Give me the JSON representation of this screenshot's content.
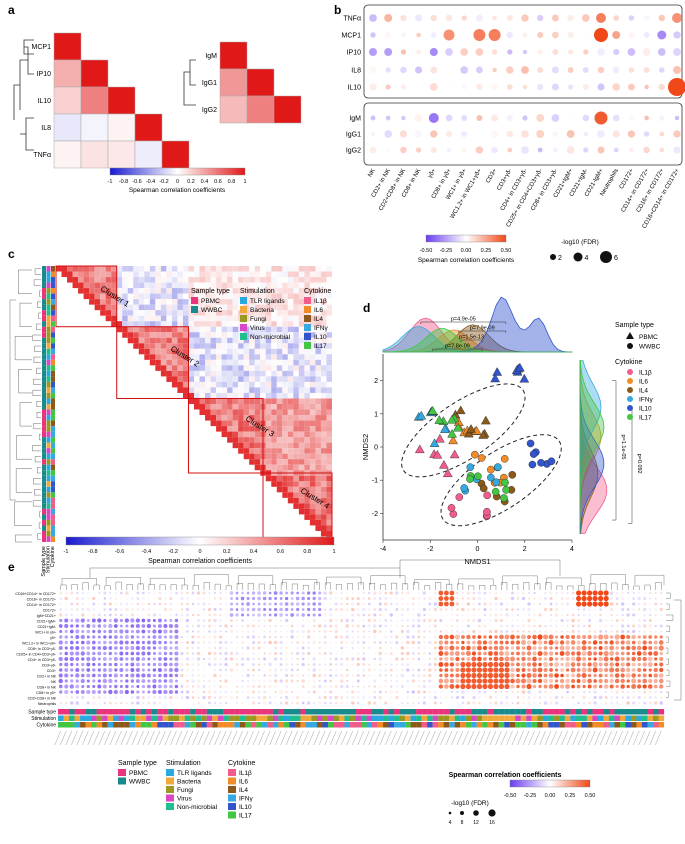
{
  "panels": {
    "a": {
      "label": "a",
      "left_matrix": {
        "rows": [
          "MCP1",
          "IP10",
          "IL10",
          "IL8",
          "TNFα"
        ],
        "values": [
          [
            1,
            null,
            null,
            null,
            null
          ],
          [
            0.35,
            1,
            null,
            null,
            null
          ],
          [
            0.2,
            0.55,
            1,
            null,
            null
          ],
          [
            -0.1,
            -0.05,
            0.05,
            1,
            null
          ],
          [
            0.05,
            0.12,
            0.1,
            -0.08,
            1
          ]
        ]
      },
      "right_matrix": {
        "rows": [
          "IgM",
          "IgG1",
          "IgG2"
        ],
        "values": [
          [
            1,
            null,
            null
          ],
          [
            0.45,
            1,
            null
          ],
          [
            0.3,
            0.55,
            1
          ]
        ]
      },
      "colorbar": {
        "ticks": [
          "-1",
          "-0.8",
          "-0.6",
          "-0.4",
          "-0.2",
          "0",
          "0.2",
          "0.4",
          "0.6",
          "0.8",
          "1"
        ],
        "label": "Spearman correlation coefficients"
      }
    },
    "b": {
      "label": "b",
      "top_rows": [
        "TNFα",
        "MCP1",
        "IP10",
        "IL8",
        "IL10"
      ],
      "bottom_rows": [
        "IgM",
        "IgG1",
        "IgG2"
      ],
      "columns": [
        "NK",
        "CD2+ in NK",
        "CD2+CD8+ in NK",
        "CD8+ in NK",
        "γδ+",
        "CD8+ in γδ+",
        "WC1+ in γδ+",
        "WC1.2+ in WC1+γδ+",
        "CD3+",
        "CD3+γδ-",
        "CD4+ in CD3+γδ-",
        "CD25+ in CD4+CD3+γδ-",
        "CD8+ in CD3+γδ-",
        "CD21+IgM+",
        "CD21+IgM-",
        "CD21-IgM+",
        "Neutrophils",
        "CD172+",
        "CD14+ in CD172+",
        "CD16+ in CD172+",
        "CD16+CD14+ in CD172+"
      ],
      "colorbar": {
        "ticks": [
          "-0.50",
          "-0.25",
          "0.00",
          "0.25",
          "0.50"
        ],
        "label": "Spearman correlation coefficients"
      },
      "size_legend": {
        "title": "-log10 (FDR)",
        "ticks": [
          "2",
          "4",
          "6"
        ]
      }
    },
    "c": {
      "label": "c",
      "clusters": [
        "Cluster 1",
        "Cluster 2",
        "Cluster 3",
        "Cluster 4"
      ],
      "row_annotations": [
        "Sample type",
        "Stimulation",
        "Cytokine"
      ],
      "colorbar": {
        "ticks": [
          "-1",
          "-0.8",
          "-0.6",
          "-0.4",
          "-0.2",
          "0",
          "0.2",
          "0.4",
          "0.6",
          "0.8",
          "1"
        ],
        "label": "Spearman correlation coefficients"
      }
    },
    "d": {
      "label": "d",
      "x_label": "NMDS1",
      "y_label": "NMDS2",
      "x_ticks": [
        "-4",
        "-2",
        "0",
        "2",
        "4"
      ],
      "y_ticks": [
        "2",
        "1",
        "0",
        "-1",
        "-2"
      ],
      "top_pvalues": [
        "p=4.9e-05",
        "p=7.9e-09",
        "p=1.5e-13",
        "p=7.8e-09"
      ],
      "side_pvalues": [
        "p=1.1e-05",
        "p=0.092"
      ],
      "legend_sample_type": {
        "title": "Sample type",
        "items": [
          "PBMC",
          "WWBC"
        ]
      },
      "legend_cytokine": {
        "title": "Cytokine",
        "items": [
          "IL1β",
          "IL6",
          "IL4",
          "IFNγ",
          "IL10",
          "IL17"
        ]
      }
    },
    "e": {
      "label": "e",
      "rows": [
        "CD16+CD14+ in CD172+",
        "CD16+ in CD172+",
        "CD14+ in CD172+",
        "CD172+",
        "IgM+CD21+",
        "CD21+IgM+",
        "CD21+IgM-",
        "WC1+ in γδ+",
        "γδ+",
        "WC1.2+ in WC1+γδ+",
        "CD8+ in CD3+γδ-",
        "CD25+ in CD4+CD3+γδ-",
        "CD4+ in CD3+γδ-",
        "CD3+γδ-",
        "CD3+",
        "CD2+ in NK",
        "NK",
        "CD8+ in NK",
        "CD8+ in γδ+",
        "CD2+CD8+ in NK",
        "Neutrophils"
      ],
      "annotation_rows": [
        "Sample type",
        "Stimulation",
        "Cytokine"
      ],
      "colorbar": {
        "label": "Spearman correlation coefficients",
        "ticks": [
          "-0.50",
          "-0.25",
          "0.00",
          "0.25",
          "0.50"
        ]
      },
      "size_legend": {
        "title": "-log10 (FDR)",
        "ticks": [
          "4",
          "8",
          "12",
          "16"
        ]
      }
    }
  },
  "legends": {
    "sample_type": {
      "title": "Sample type",
      "items": [
        {
          "label": "PBMC",
          "color": "#e8347a"
        },
        {
          "label": "WWBC",
          "color": "#1a8a8c"
        }
      ]
    },
    "stimulation": {
      "title": "Stimulation",
      "items": [
        {
          "label": "TLR ligands",
          "color": "#29a9e0"
        },
        {
          "label": "Bacteria",
          "color": "#f2a93b"
        },
        {
          "label": "Fungi",
          "color": "#9a9a22"
        },
        {
          "label": "Virus",
          "color": "#d946c6"
        },
        {
          "label": "Non-microbial",
          "color": "#1fbf8f"
        }
      ]
    },
    "cytokine": {
      "title": "Cytokine",
      "items": [
        {
          "label": "IL1β",
          "color": "#f25c8a"
        },
        {
          "label": "IL6",
          "color": "#f28c28"
        },
        {
          "label": "IL4",
          "color": "#8b5a1a"
        },
        {
          "label": "IFNγ",
          "color": "#35a9e0"
        },
        {
          "label": "IL10",
          "color": "#3355cc"
        },
        {
          "label": "IL17",
          "color": "#43c643"
        }
      ]
    }
  },
  "colors": {
    "negative": "#2b2bd6",
    "positive": "#e02020",
    "neutral": "#ffffff"
  }
}
